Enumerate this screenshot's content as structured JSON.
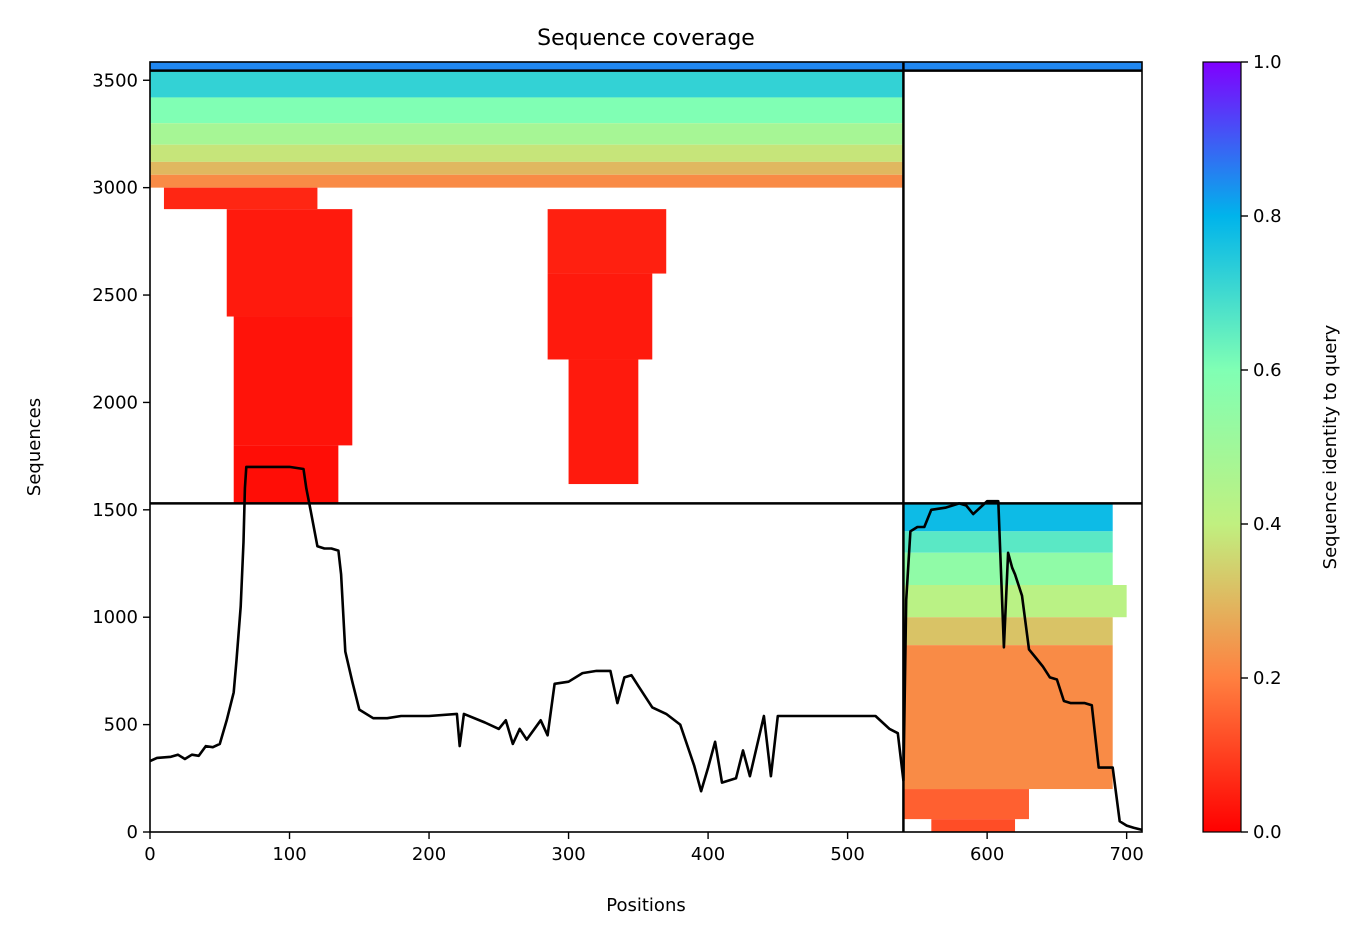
{
  "chart_data": {
    "type": "heatmap",
    "title": "Sequence coverage",
    "xlabel": "Positions",
    "ylabel": "Sequences",
    "xlim": [
      0,
      711
    ],
    "ylim": [
      0,
      3585
    ],
    "xticks": [
      0,
      100,
      200,
      300,
      400,
      500,
      600,
      700
    ],
    "yticks": [
      0,
      500,
      1000,
      1500,
      2000,
      2500,
      3000,
      3500
    ],
    "grid": false,
    "colorbar": {
      "label": "Sequence identity to query",
      "range": [
        0,
        1
      ],
      "ticks": [
        "0.0",
        "0.2",
        "0.4",
        "0.6",
        "0.8",
        "1.0"
      ],
      "colormap": "rainbow_r",
      "stops": [
        "#ff0000",
        "#ff8040",
        "#c0f080",
        "#80ffb4",
        "#00b4eb",
        "#8000ff"
      ]
    },
    "dividers": {
      "vertical_x": [
        540
      ],
      "horizontal_left_y": [
        1530,
        3545
      ],
      "horizontal_right_y": [
        1530,
        3545
      ]
    },
    "coverage_blocks": [
      {
        "x": [
          0,
          540
        ],
        "y": [
          3545,
          3585
        ],
        "identity": 0.85
      },
      {
        "x": [
          0,
          540
        ],
        "y": [
          3420,
          3545
        ],
        "identity": 0.72
      },
      {
        "x": [
          0,
          540
        ],
        "y": [
          3300,
          3420
        ],
        "identity": 0.6
      },
      {
        "x": [
          0,
          540
        ],
        "y": [
          3200,
          3300
        ],
        "identity": 0.48
      },
      {
        "x": [
          0,
          540
        ],
        "y": [
          3120,
          3200
        ],
        "identity": 0.38
      },
      {
        "x": [
          0,
          540
        ],
        "y": [
          3060,
          3120
        ],
        "identity": 0.3
      },
      {
        "x": [
          0,
          540
        ],
        "y": [
          3000,
          3060
        ],
        "identity": 0.22
      },
      {
        "x": [
          10,
          120
        ],
        "y": [
          2900,
          3000
        ],
        "identity": 0.06
      },
      {
        "x": [
          55,
          145
        ],
        "y": [
          2400,
          2900
        ],
        "identity": 0.04
      },
      {
        "x": [
          60,
          145
        ],
        "y": [
          1800,
          2400
        ],
        "identity": 0.03
      },
      {
        "x": [
          60,
          135
        ],
        "y": [
          1530,
          1800
        ],
        "identity": 0.02
      },
      {
        "x": [
          285,
          370
        ],
        "y": [
          2600,
          2900
        ],
        "identity": 0.05
      },
      {
        "x": [
          285,
          360
        ],
        "y": [
          2200,
          2600
        ],
        "identity": 0.04
      },
      {
        "x": [
          300,
          350
        ],
        "y": [
          1620,
          2200
        ],
        "identity": 0.04
      },
      {
        "x": [
          540,
          711
        ],
        "y": [
          3545,
          3585
        ],
        "identity": 0.85
      },
      {
        "x": [
          540,
          690
        ],
        "y": [
          1400,
          1530
        ],
        "identity": 0.78
      },
      {
        "x": [
          540,
          690
        ],
        "y": [
          1300,
          1400
        ],
        "identity": 0.66
      },
      {
        "x": [
          540,
          690
        ],
        "y": [
          1150,
          1300
        ],
        "identity": 0.55
      },
      {
        "x": [
          540,
          700
        ],
        "y": [
          1000,
          1150
        ],
        "identity": 0.42
      },
      {
        "x": [
          540,
          690
        ],
        "y": [
          870,
          1000
        ],
        "identity": 0.32
      },
      {
        "x": [
          540,
          690
        ],
        "y": [
          200,
          870
        ],
        "identity": 0.22
      },
      {
        "x": [
          540,
          630
        ],
        "y": [
          60,
          200
        ],
        "identity": 0.15
      },
      {
        "x": [
          560,
          620
        ],
        "y": [
          0,
          60
        ],
        "identity": 0.12
      }
    ],
    "series": [
      {
        "x": [
          0,
          5,
          15,
          20,
          25,
          30,
          35,
          40,
          45,
          50,
          55,
          60,
          62,
          65,
          67,
          68,
          69,
          70,
          75,
          100,
          110,
          112,
          115,
          120,
          125,
          130,
          135,
          137,
          140,
          145,
          150,
          160,
          170,
          180,
          200,
          220,
          222,
          225,
          240,
          250,
          255,
          260,
          265,
          270,
          280,
          285,
          290,
          300,
          310,
          320,
          330,
          335,
          340,
          345,
          350,
          360,
          370,
          380,
          390,
          395,
          400,
          405,
          410,
          420,
          425,
          430,
          440,
          445,
          450,
          460,
          480,
          500,
          520,
          530,
          536,
          540,
          542,
          545,
          550,
          555,
          560,
          570,
          580,
          585,
          590,
          600,
          605,
          608,
          610,
          612,
          615,
          618,
          620,
          625,
          630,
          635,
          640,
          645,
          650,
          655,
          660,
          665,
          670,
          675,
          680,
          683,
          685,
          690,
          695,
          700,
          705,
          711
        ],
        "y": [
          330,
          345,
          350,
          360,
          340,
          360,
          355,
          400,
          395,
          410,
          520,
          650,
          800,
          1050,
          1350,
          1600,
          1700,
          1700,
          1700,
          1700,
          1690,
          1600,
          1500,
          1330,
          1320,
          1320,
          1310,
          1200,
          840,
          700,
          570,
          530,
          530,
          540,
          540,
          550,
          400,
          550,
          510,
          480,
          520,
          410,
          480,
          430,
          520,
          450,
          690,
          700,
          740,
          750,
          750,
          600,
          720,
          730,
          680,
          580,
          550,
          500,
          310,
          190,
          300,
          420,
          230,
          250,
          380,
          260,
          540,
          260,
          540,
          540,
          540,
          540,
          540,
          480,
          460,
          240,
          1080,
          1400,
          1420,
          1420,
          1500,
          1510,
          1530,
          1520,
          1480,
          1540,
          1540,
          1540,
          1200,
          860,
          1300,
          1230,
          1200,
          1100,
          850,
          810,
          770,
          720,
          710,
          610,
          600,
          600,
          600,
          590,
          300,
          300,
          300,
          300,
          50,
          30,
          20,
          10
        ]
      }
    ]
  }
}
